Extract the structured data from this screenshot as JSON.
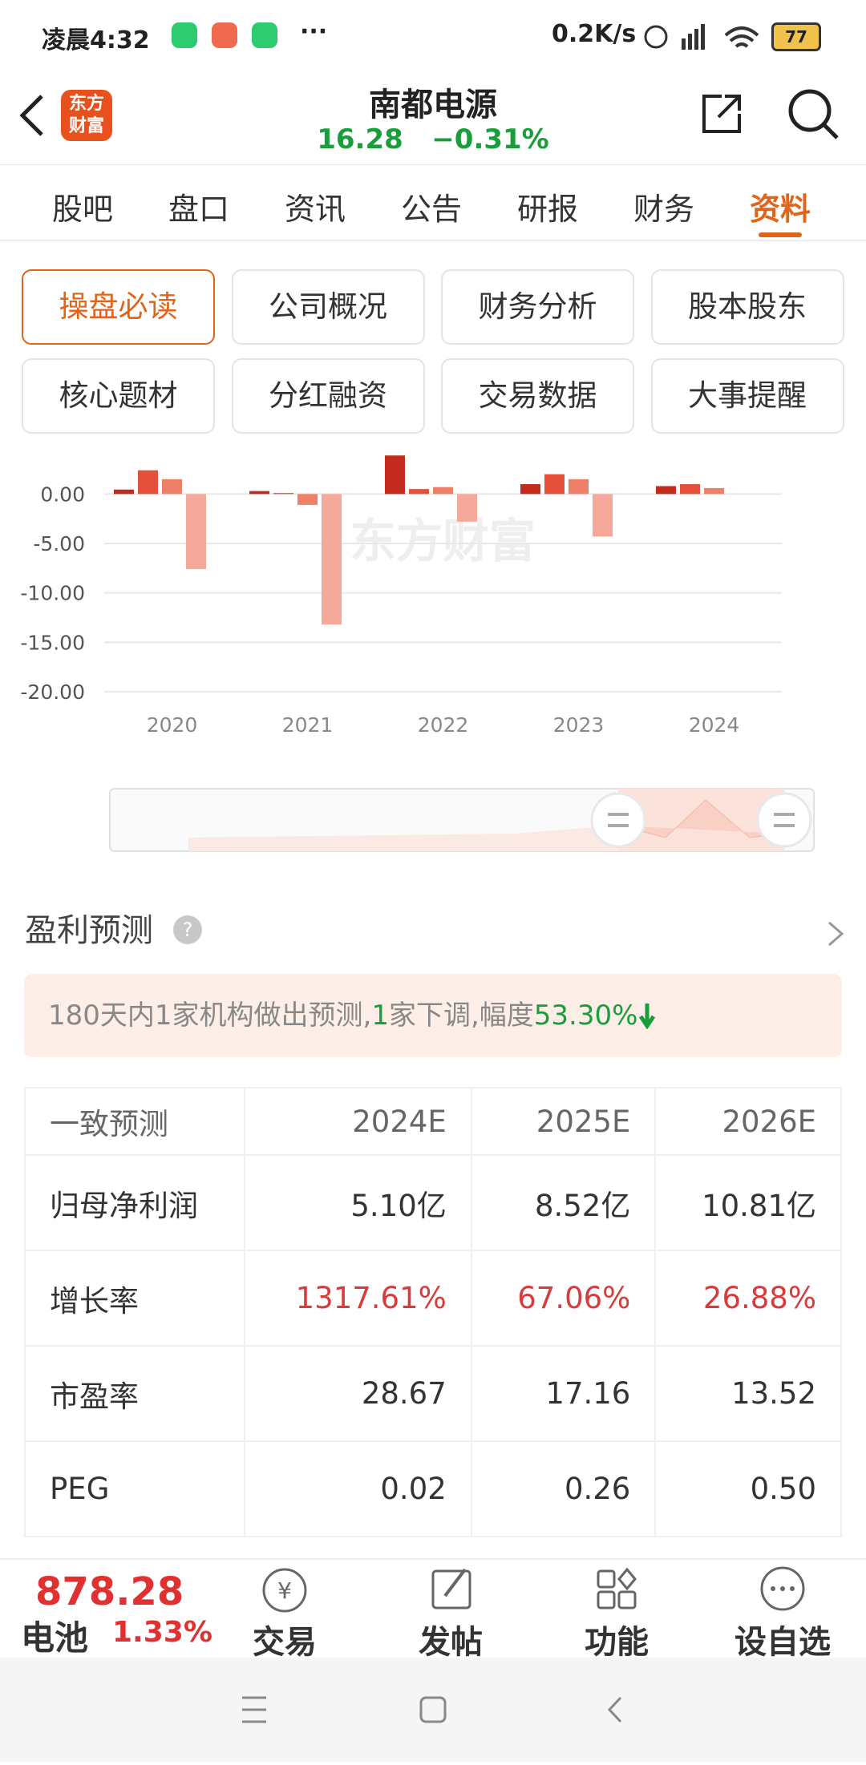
{
  "status_bar": {
    "time": "凌晨4:32",
    "network": "0.2K/s",
    "battery": "77"
  },
  "header": {
    "logo_lines": [
      "东方",
      "财富"
    ],
    "title": "南都电源",
    "price": "16.28",
    "change": "−0.31%"
  },
  "tabs": [
    "股吧",
    "盘口",
    "资讯",
    "公告",
    "研报",
    "财务",
    "资料"
  ],
  "active_tab": 6,
  "buttons": [
    "操盘必读",
    "公司概况",
    "财务分析",
    "股本股东",
    "核心题材",
    "分红融资",
    "交易数据",
    "大事提醒"
  ],
  "active_button": 0,
  "chart_data": {
    "type": "bar",
    "categories": [
      "2020",
      "2021",
      "2022",
      "2023",
      "2024"
    ],
    "series": [
      {
        "color": "#c42b1e",
        "values": [
          0.45,
          0.3,
          3.9,
          1.0,
          0.8
        ]
      },
      {
        "color": "#e4503a",
        "values": [
          2.4,
          0.1,
          0.5,
          2.0,
          1.0
        ]
      },
      {
        "color": "#ee8068",
        "values": [
          1.5,
          -1.1,
          0.7,
          1.5,
          0.6
        ]
      },
      {
        "color": "#f5a99a",
        "values": [
          -7.6,
          -13.2,
          -2.8,
          -4.3,
          null
        ]
      }
    ],
    "ylim": [
      -20,
      4
    ],
    "yticks": [
      {
        "value": 0,
        "label": "0.00"
      },
      {
        "value": -5,
        "label": "-5.00"
      },
      {
        "value": -10,
        "label": "-10.00"
      },
      {
        "value": -15,
        "label": "-15.00"
      },
      {
        "value": -20,
        "label": "-20.00"
      }
    ],
    "grid": true,
    "watermark": "东方财富"
  },
  "forecast": {
    "title": "盈利预测",
    "summary": [
      {
        "text": "180天内1家机构做出预测,",
        "color": "#888888"
      },
      {
        "text": "1",
        "color": "#1a9e3c"
      },
      {
        "text": "家下调,幅度",
        "color": "#888888"
      },
      {
        "text": "53.30%",
        "color": "#1a9e3c"
      }
    ],
    "table": [
      [
        "一致预测",
        "2024E",
        "2025E",
        "2026E"
      ],
      [
        "归母净利润",
        "5.10亿",
        "8.52亿",
        "10.81亿"
      ],
      [
        "增长率",
        "1317.61%",
        "67.06%",
        "26.88%"
      ],
      [
        "市盈率",
        "28.67",
        "17.16",
        "13.52"
      ],
      [
        "PEG",
        "0.02",
        "0.26",
        "0.50"
      ]
    ]
  },
  "bottom_bar": {
    "index_value": "878.28",
    "index_name": "电池",
    "index_change": "1.33%",
    "buttons": [
      "交易",
      "发帖",
      "功能",
      "设自选"
    ]
  }
}
